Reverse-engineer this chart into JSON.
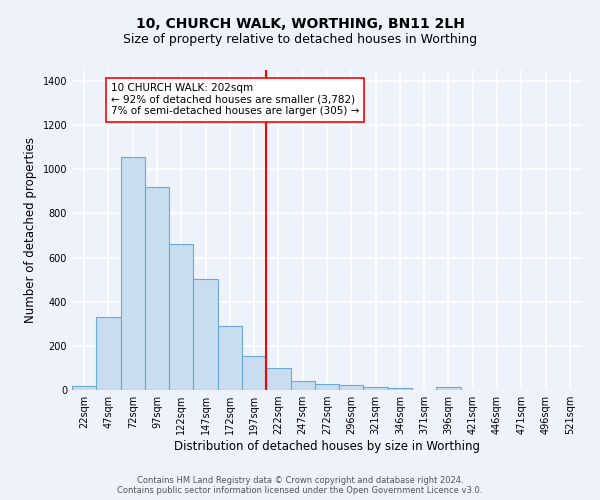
{
  "title": "10, CHURCH WALK, WORTHING, BN11 2LH",
  "subtitle": "Size of property relative to detached houses in Worthing",
  "xlabel": "Distribution of detached houses by size in Worthing",
  "ylabel": "Number of detached properties",
  "bar_labels": [
    "22sqm",
    "47sqm",
    "72sqm",
    "97sqm",
    "122sqm",
    "147sqm",
    "172sqm",
    "197sqm",
    "222sqm",
    "247sqm",
    "272sqm",
    "296sqm",
    "321sqm",
    "346sqm",
    "371sqm",
    "396sqm",
    "421sqm",
    "446sqm",
    "471sqm",
    "496sqm",
    "521sqm"
  ],
  "bar_values": [
    20,
    330,
    1055,
    920,
    660,
    505,
    290,
    155,
    100,
    42,
    25,
    22,
    15,
    10,
    0,
    15,
    0,
    0,
    0,
    0,
    0
  ],
  "bar_color": "#c8ddf0",
  "bar_edge_color": "#6aaad4",
  "vline_color": "red",
  "annotation_text": "10 CHURCH WALK: 202sqm\n← 92% of detached houses are smaller (3,782)\n7% of semi-detached houses are larger (305) →",
  "annotation_box_color": "white",
  "annotation_box_edge_color": "red",
  "ylim": [
    0,
    1450
  ],
  "yticks": [
    0,
    200,
    400,
    600,
    800,
    1000,
    1200,
    1400
  ],
  "bg_color": "#eef2fb",
  "grid_color": "white",
  "footer_line1": "Contains HM Land Registry data © Crown copyright and database right 2024.",
  "footer_line2": "Contains public sector information licensed under the Open Government Licence v3.0.",
  "title_fontsize": 10,
  "subtitle_fontsize": 9,
  "axis_label_fontsize": 8.5,
  "tick_fontsize": 7,
  "annotation_fontsize": 7.5,
  "footer_fontsize": 6
}
